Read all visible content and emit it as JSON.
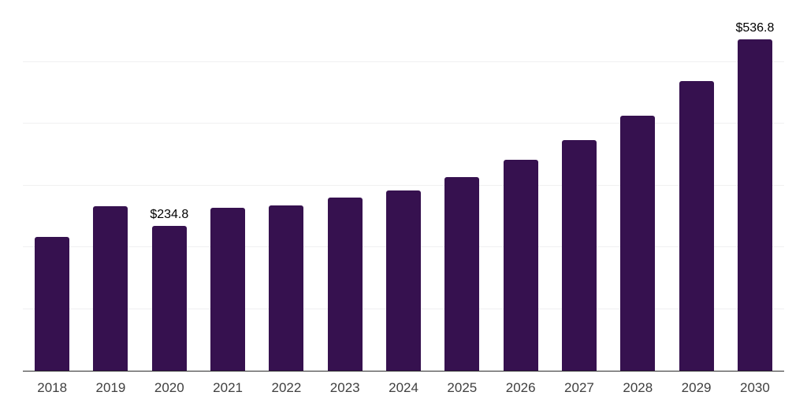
{
  "chart_data": {
    "type": "bar",
    "title": "",
    "xlabel": "",
    "ylabel": "",
    "categories": [
      "2018",
      "2019",
      "2020",
      "2021",
      "2022",
      "2023",
      "2024",
      "2025",
      "2026",
      "2027",
      "2028",
      "2029",
      "2030"
    ],
    "values": [
      216,
      266,
      234.8,
      264,
      268,
      280,
      292,
      314,
      342,
      373,
      413,
      469,
      536.8
    ],
    "point_labels": [
      "",
      "",
      "$234.8",
      "",
      "",
      "",
      "",
      "",
      "",
      "",
      "",
      "",
      "$536.8"
    ],
    "ylim": [
      0,
      600
    ],
    "grid_step": 100,
    "grid": true,
    "y_axis_labels_visible": false,
    "legend_position": "none"
  },
  "colors": {
    "bar": "#36114F",
    "gridline": "#F0F0F1",
    "axis_line": "#2B2B2B",
    "tick_label": "#404040",
    "data_label": "#000000",
    "background": "#FFFFFF"
  }
}
